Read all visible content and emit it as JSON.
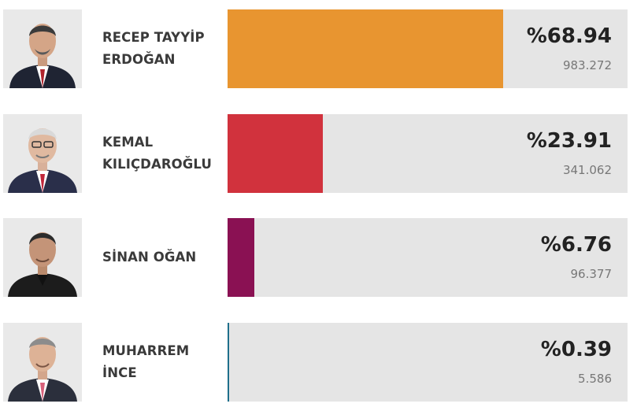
{
  "colors": {
    "track": "#e5e5e5",
    "erdogan": "#e89530",
    "kilicdaroglu": "#d1323d",
    "ogan": "#8a1153",
    "ince": "#1f6f8b"
  },
  "candidates": [
    {
      "name_line1": "RECEP TAYYİP",
      "name_line2": "ERDOĞAN",
      "percent_label": "%68.94",
      "percent": 68.94,
      "votes": "983.272",
      "color": "#e89530",
      "photo_icon": "candidate-photo-icon"
    },
    {
      "name_line1": "KEMAL",
      "name_line2": "KILIÇDAROĞLU",
      "percent_label": "%23.91",
      "percent": 23.91,
      "votes": "341.062",
      "color": "#d1323d",
      "photo_icon": "candidate-photo-icon"
    },
    {
      "name_line1": "SİNAN OĞAN",
      "name_line2": "",
      "percent_label": "%6.76",
      "percent": 6.76,
      "votes": "96.377",
      "color": "#8a1153",
      "photo_icon": "candidate-photo-icon"
    },
    {
      "name_line1": "MUHARREM",
      "name_line2": "İNCE",
      "percent_label": "%0.39",
      "percent": 0.39,
      "votes": "5.586",
      "color": "#1f6f8b",
      "photo_icon": "candidate-photo-icon"
    }
  ]
}
